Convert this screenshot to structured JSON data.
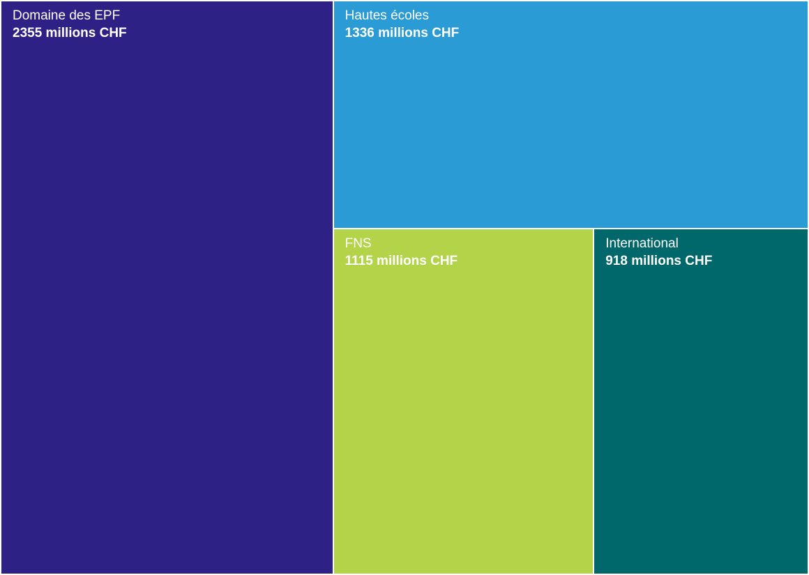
{
  "chart_data": {
    "type": "treemap",
    "unit": "millions CHF",
    "items": [
      {
        "name": "Domaine des EPF",
        "value": 2355,
        "label": "2355 millions CHF",
        "color": "#2e2185"
      },
      {
        "name": "Hautes écoles",
        "value": 1336,
        "label": "1336 millions CHF",
        "color": "#2b9bd6"
      },
      {
        "name": "FNS",
        "value": 1115,
        "label": "1115 millions CHF",
        "color": "#b3d448"
      },
      {
        "name": "International",
        "value": 918,
        "label": "918 millions CHF",
        "color": "#00676a"
      }
    ]
  }
}
